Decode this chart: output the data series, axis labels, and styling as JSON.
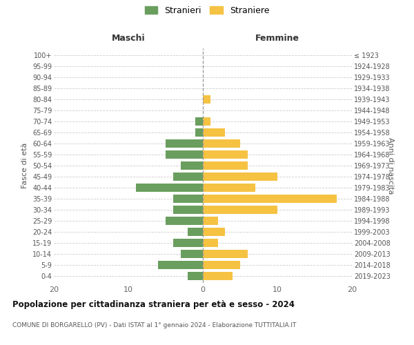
{
  "age_groups": [
    "0-4",
    "5-9",
    "10-14",
    "15-19",
    "20-24",
    "25-29",
    "30-34",
    "35-39",
    "40-44",
    "45-49",
    "50-54",
    "55-59",
    "60-64",
    "65-69",
    "70-74",
    "75-79",
    "80-84",
    "85-89",
    "90-94",
    "95-99",
    "100+"
  ],
  "birth_years": [
    "2019-2023",
    "2014-2018",
    "2009-2013",
    "2004-2008",
    "1999-2003",
    "1994-1998",
    "1989-1993",
    "1984-1988",
    "1979-1983",
    "1974-1978",
    "1969-1973",
    "1964-1968",
    "1959-1963",
    "1954-1958",
    "1949-1953",
    "1944-1948",
    "1939-1943",
    "1934-1938",
    "1929-1933",
    "1924-1928",
    "≤ 1923"
  ],
  "males": [
    2,
    6,
    3,
    4,
    2,
    5,
    4,
    4,
    9,
    4,
    3,
    5,
    5,
    1,
    1,
    0,
    0,
    0,
    0,
    0,
    0
  ],
  "females": [
    4,
    5,
    6,
    2,
    3,
    2,
    10,
    18,
    7,
    10,
    6,
    6,
    5,
    3,
    1,
    0,
    1,
    0,
    0,
    0,
    0
  ],
  "male_color": "#6a9e5e",
  "female_color": "#f5c242",
  "title": "Popolazione per cittadinanza straniera per età e sesso - 2024",
  "subtitle": "COMUNE DI BORGARELLO (PV) - Dati ISTAT al 1° gennaio 2024 - Elaborazione TUTTITALIA.IT",
  "xlabel_left": "Maschi",
  "xlabel_right": "Femmine",
  "ylabel_left": "Fasce di età",
  "ylabel_right": "Anni di nascita",
  "xlim": 20,
  "legend_label_male": "Stranieri",
  "legend_label_female": "Straniere",
  "background_color": "#ffffff",
  "grid_color": "#cccccc",
  "bar_height": 0.75
}
